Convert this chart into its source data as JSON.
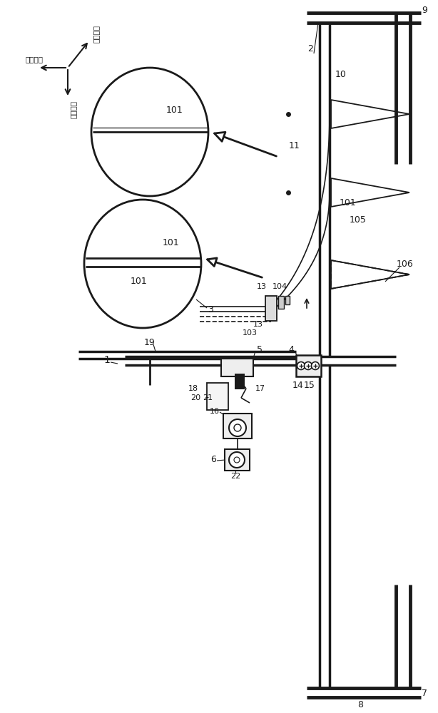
{
  "bg": "#ffffff",
  "lc": "#1a1a1a",
  "figsize": [
    6.14,
    10.0
  ],
  "dpi": 100,
  "dir2": "第二方向",
  "dir3": "第三方向",
  "dir1": "第一方向",
  "labels": {
    "1": "1",
    "2": "2",
    "3": "3",
    "4": "4",
    "5": "5",
    "6": "6",
    "7": "7",
    "8": "8",
    "9": "9",
    "10": "10",
    "11": "11",
    "13a": "13",
    "13b": "13",
    "14": "14",
    "15": "15",
    "16": "16",
    "17": "17",
    "18": "18",
    "19": "19",
    "20": "20",
    "21": "21",
    "22": "22",
    "101a": "101",
    "101b": "101",
    "101c": "101",
    "103": "103",
    "104": "104",
    "105": "105",
    "106": "106"
  }
}
